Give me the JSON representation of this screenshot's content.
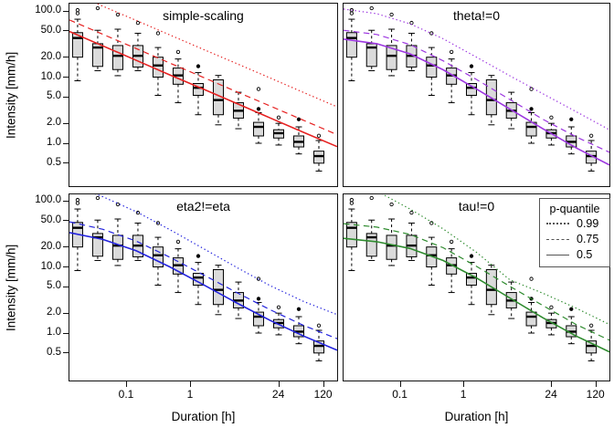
{
  "legend": {
    "title": "p-quantile",
    "line_color": "#555555",
    "entries": [
      {
        "style": "dotted",
        "label": "0.99"
      },
      {
        "style": "dashed",
        "label": "0.75"
      },
      {
        "style": "solid",
        "label": "0.5"
      }
    ]
  },
  "chart_data": {
    "type": "boxplot",
    "x_scale": "log",
    "y_scale": "log",
    "xlabel": "Duration [h]",
    "ylabel": "Intensity [mm/h]",
    "x_tick_values": [
      0.1,
      1,
      24,
      120
    ],
    "x_tick_labels": [
      "0.1",
      "1",
      "24",
      "120"
    ],
    "y_tick_values": [
      100,
      50,
      20,
      10,
      5,
      2,
      1,
      0.5
    ],
    "y_tick_labels": [
      "100.0",
      "50.0",
      "20.0",
      "10.0",
      "5.0",
      "2.0",
      "1.0",
      "0.5"
    ],
    "x_range_h": [
      0.0126,
      206
    ],
    "y_range_mmh": [
      0.21,
      133
    ],
    "box_fill": "#DBDBDB",
    "box_durations_h": [
      0.017,
      0.035,
      0.072,
      0.15,
      0.31,
      0.65,
      1.34,
      2.78,
      5.8,
      11.9,
      24.8,
      51.4,
      107
    ],
    "box_fx": [
      0.0305,
      0.1056,
      0.1807,
      0.2558,
      0.3309,
      0.406,
      0.4811,
      0.5562,
      0.6313,
      0.7064,
      0.7815,
      0.8566,
      0.9317
    ],
    "boxes": [
      {
        "med": 39,
        "q1": 20,
        "q3": 47,
        "lo": 8.8,
        "hi": 75,
        "out": [
          {
            "v": 103,
            "filled": false
          },
          {
            "v": 92,
            "filled": false
          }
        ]
      },
      {
        "med": 28,
        "q1": 14.5,
        "q3": 32,
        "lo": 12.5,
        "hi": 51,
        "out": [
          {
            "v": 110,
            "filled": false
          }
        ]
      },
      {
        "med": 21,
        "q1": 13,
        "q3": 30,
        "lo": 10.5,
        "hi": 53,
        "out": [
          {
            "v": 88,
            "filled": false
          }
        ]
      },
      {
        "med": 21,
        "q1": 14.2,
        "q3": 30,
        "lo": 12.5,
        "hi": 46,
        "out": [
          {
            "v": 66,
            "filled": false
          }
        ]
      },
      {
        "med": 15,
        "q1": 10,
        "q3": 20,
        "lo": 5.3,
        "hi": 28,
        "out": [
          {
            "v": 46,
            "filled": false
          }
        ]
      },
      {
        "med": 10.6,
        "q1": 7.8,
        "q3": 13.7,
        "lo": 4.1,
        "hi": 18.8,
        "out": [
          {
            "v": 24,
            "filled": false
          }
        ]
      },
      {
        "med": 6.9,
        "q1": 5.3,
        "q3": 8.0,
        "lo": 2.7,
        "hi": 11.7,
        "out": [
          {
            "v": 14.6,
            "filled": true
          }
        ]
      },
      {
        "med": 4.5,
        "q1": 2.7,
        "q3": 9.1,
        "lo": 1.9,
        "hi": 10.6,
        "out": []
      },
      {
        "med": 3.1,
        "q1": 2.4,
        "q3": 4.1,
        "lo": 1.66,
        "hi": 5.9,
        "out": []
      },
      {
        "med": 1.77,
        "q1": 1.29,
        "q3": 2.07,
        "lo": 1.0,
        "hi": 2.9,
        "out": [
          {
            "v": 6.6,
            "filled": false
          },
          {
            "v": 3.3,
            "filled": true
          }
        ]
      },
      {
        "med": 1.42,
        "q1": 1.2,
        "q3": 1.6,
        "lo": 0.94,
        "hi": 2.0,
        "out": [
          {
            "v": 2.45,
            "filled": false
          }
        ]
      },
      {
        "med": 1.05,
        "q1": 0.88,
        "q3": 1.29,
        "lo": 0.69,
        "hi": 1.77,
        "out": [
          {
            "v": 2.3,
            "filled": true
          }
        ]
      },
      {
        "med": 0.64,
        "q1": 0.5,
        "q3": 0.76,
        "lo": 0.38,
        "hi": 1.1,
        "out": [
          {
            "v": 1.3,
            "filled": false
          }
        ]
      }
    ],
    "quantile_fx": [
      0,
      0.125,
      0.25,
      0.375,
      0.5,
      0.625,
      0.75,
      0.875,
      1
    ],
    "panels": [
      {
        "title": "simple-scaling",
        "color": "#E62020",
        "q99": [
          195,
          118,
          71.6,
          43.4,
          26.3,
          16.0,
          9.7,
          5.85,
          3.55
        ],
        "q75": [
          73,
          44.3,
          26.9,
          16.3,
          9.9,
          6.0,
          3.65,
          2.22,
          1.35
        ],
        "q50": [
          49,
          29.6,
          17.9,
          10.8,
          6.6,
          4.0,
          2.41,
          1.46,
          0.89
        ]
      },
      {
        "title": "theta!=0",
        "color": "#9C36E0",
        "q99": [
          107,
          91,
          64,
          38,
          20,
          10.5,
          5.6,
          3.0,
          1.6
        ],
        "q75": [
          51,
          44,
          31,
          17.6,
          9.2,
          4.6,
          2.3,
          1.25,
          0.73
        ],
        "q50": [
          37.5,
          32,
          22.5,
          12.9,
          6.6,
          3.3,
          1.65,
          0.85,
          0.47
        ]
      },
      {
        "title": "eta2!=eta",
        "color": "#2222DD",
        "q99": [
          175,
          115,
          68,
          36.5,
          19,
          9.8,
          5.2,
          3.0,
          1.9
        ],
        "q75": [
          48,
          37,
          24.5,
          14.0,
          7.6,
          4.1,
          2.25,
          1.3,
          0.82
        ],
        "q50": [
          33,
          26,
          17.5,
          10.0,
          5.4,
          2.85,
          1.55,
          0.9,
          0.55
        ]
      },
      {
        "title": "tau!=0",
        "color": "#2E8B2E",
        "q99": [
          320,
          140,
          75,
          37.5,
          16.6,
          6.4,
          4.0,
          2.38,
          1.35
        ],
        "q75": [
          45,
          40,
          31,
          19.5,
          10.2,
          5.1,
          2.6,
          1.35,
          0.78
        ],
        "q50": [
          27,
          24,
          19,
          12.5,
          6.8,
          3.4,
          1.7,
          0.9,
          0.52
        ]
      }
    ]
  }
}
